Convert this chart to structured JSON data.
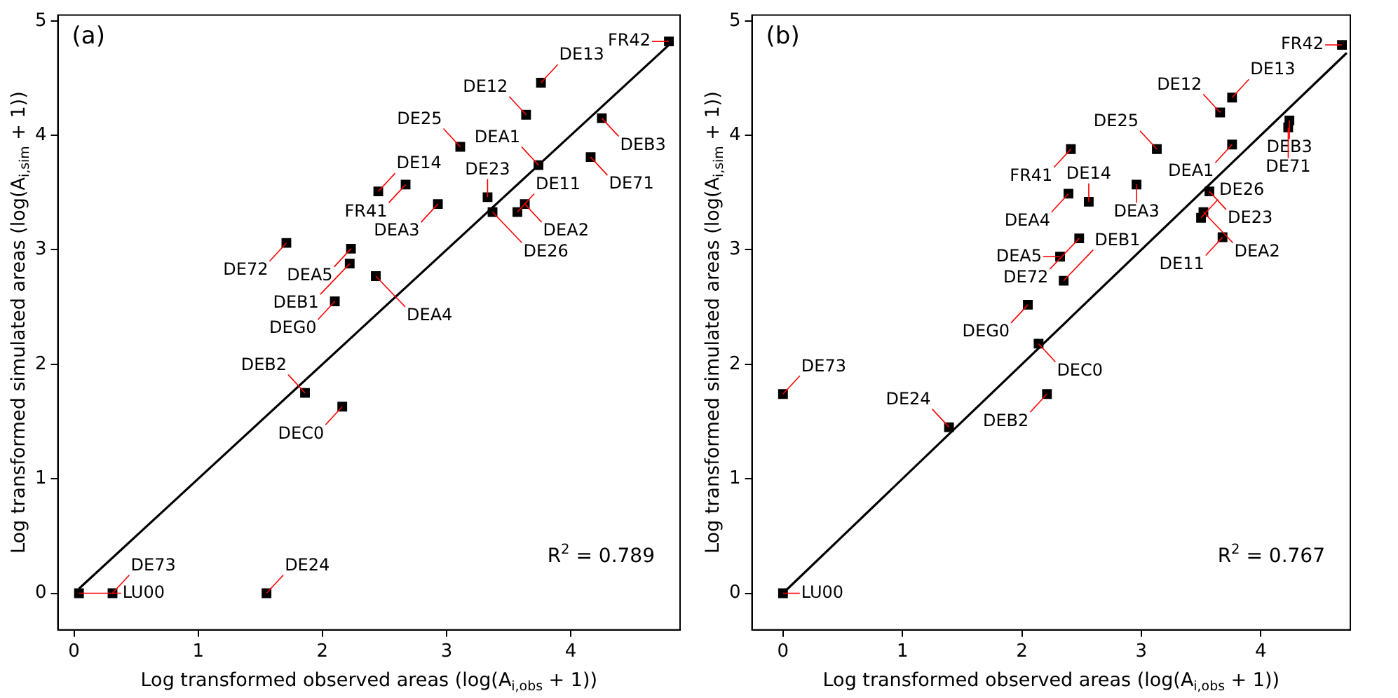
{
  "chart_data": [
    {
      "type": "scatter",
      "title": "(a)",
      "xlabel": "Log transformed observed areas (log(A$_{i,obs}$ + 1))",
      "ylabel": "Log transformed simulated areas (log(A$_{i,sim}$ + 1))",
      "xlim": [
        -0.13,
        4.88
      ],
      "ylim": [
        -0.32,
        5.05
      ],
      "xticks": [
        0,
        1,
        2,
        3,
        4
      ],
      "yticks": [
        0,
        1,
        2,
        3,
        4,
        5
      ],
      "grid": false,
      "legend": false,
      "marker": "square",
      "series": [
        {
          "type": "scatter",
          "color": "#000000",
          "x": [
            4.79,
            3.76,
            4.25,
            3.64,
            3.11,
            3.74,
            4.16,
            2.67,
            2.45,
            2.93,
            3.33,
            3.63,
            3.57,
            3.37,
            1.71,
            2.23,
            2.22,
            2.43,
            2.1,
            1.86,
            2.16,
            0.04,
            0.31,
            1.55
          ],
          "values": [
            4.82,
            4.46,
            4.15,
            4.18,
            3.9,
            3.74,
            3.81,
            3.57,
            3.51,
            3.4,
            3.46,
            3.4,
            3.33,
            3.33,
            3.06,
            3.01,
            2.88,
            2.77,
            2.55,
            1.75,
            1.63,
            0.0,
            0.0,
            0.0
          ]
        },
        {
          "type": "line",
          "color": "#000000",
          "marker": "none",
          "line_style": "solid",
          "x": [
            0.04,
            4.79
          ],
          "values": [
            0.04,
            4.79
          ]
        }
      ],
      "annotations": [
        "R$^{2}$ = 0.789",
        {
          "text": "FR42",
          "x": 4.79,
          "y": 4.82
        },
        {
          "text": "DE13",
          "x": 3.76,
          "y": 4.46
        },
        {
          "text": "DEB3",
          "x": 4.25,
          "y": 4.15
        },
        {
          "text": "DE12",
          "x": 3.64,
          "y": 4.18
        },
        {
          "text": "DE25",
          "x": 3.11,
          "y": 3.9
        },
        {
          "text": "DEA1",
          "x": 3.74,
          "y": 3.74
        },
        {
          "text": "DE71",
          "x": 4.16,
          "y": 3.81
        },
        {
          "text": "FR41",
          "x": 2.67,
          "y": 3.57
        },
        {
          "text": "DE14",
          "x": 2.45,
          "y": 3.51
        },
        {
          "text": "DEA3",
          "x": 2.93,
          "y": 3.4
        },
        {
          "text": "DE23",
          "x": 3.33,
          "y": 3.46
        },
        {
          "text": "DEA2",
          "x": 3.63,
          "y": 3.4
        },
        {
          "text": "DE11",
          "x": 3.57,
          "y": 3.33
        },
        {
          "text": "DE26",
          "x": 3.37,
          "y": 3.33
        },
        {
          "text": "DE72",
          "x": 1.71,
          "y": 3.06
        },
        {
          "text": "DEA5",
          "x": 2.23,
          "y": 3.01
        },
        {
          "text": "DEB1",
          "x": 2.22,
          "y": 2.88
        },
        {
          "text": "DEA4",
          "x": 2.43,
          "y": 2.77
        },
        {
          "text": "DEG0",
          "x": 2.1,
          "y": 2.55
        },
        {
          "text": "DEB2",
          "x": 1.86,
          "y": 1.75
        },
        {
          "text": "DEC0",
          "x": 2.16,
          "y": 1.63
        },
        {
          "text": "LU00",
          "x": 0.04,
          "y": 0.0
        },
        {
          "text": "DE73",
          "x": 0.31,
          "y": 0.0
        },
        {
          "text": "DE24",
          "x": 1.55,
          "y": 0.0
        }
      ]
    },
    {
      "type": "scatter",
      "title": "(b)",
      "xlabel": "Log transformed observed areas (log(A$_{i,obs}$ + 1))",
      "ylabel": "Log transformed simulated areas (log(A$_{i,sim}$ + 1))",
      "xlim": [
        -0.26,
        4.75
      ],
      "ylim": [
        -0.32,
        5.05
      ],
      "xticks": [
        0,
        1,
        2,
        3,
        4
      ],
      "yticks": [
        0,
        1,
        2,
        3,
        4,
        5
      ],
      "grid": false,
      "legend": false,
      "marker": "square",
      "series": [
        {
          "type": "scatter",
          "color": "#000000",
          "x": [
            4.68,
            3.76,
            3.66,
            4.24,
            4.23,
            2.41,
            3.13,
            3.76,
            2.96,
            3.57,
            2.39,
            2.56,
            3.52,
            3.5,
            2.48,
            3.68,
            2.32,
            2.35,
            2.05,
            2.14,
            0.0,
            2.21,
            1.39,
            0.0
          ],
          "values": [
            4.79,
            4.33,
            4.2,
            4.13,
            4.07,
            3.88,
            3.88,
            3.92,
            3.57,
            3.51,
            3.49,
            3.42,
            3.33,
            3.28,
            3.1,
            3.11,
            2.94,
            2.73,
            2.52,
            2.18,
            1.74,
            1.74,
            1.45,
            0.0
          ]
        },
        {
          "type": "line",
          "color": "#000000",
          "marker": "none",
          "line_style": "solid",
          "x": [
            0.0,
            4.72
          ],
          "values": [
            0.0,
            4.72
          ]
        }
      ],
      "annotations": [
        "R$^{2}$ = 0.767",
        {
          "text": "FR42",
          "x": 4.68,
          "y": 4.79
        },
        {
          "text": "DE13",
          "x": 3.76,
          "y": 4.33
        },
        {
          "text": "DE12",
          "x": 3.66,
          "y": 4.2
        },
        {
          "text": "DEB3",
          "x": 4.24,
          "y": 4.13
        },
        {
          "text": "DE71",
          "x": 4.23,
          "y": 4.07
        },
        {
          "text": "FR41",
          "x": 2.41,
          "y": 3.88
        },
        {
          "text": "DE25",
          "x": 3.13,
          "y": 3.88
        },
        {
          "text": "DEA1",
          "x": 3.76,
          "y": 3.92
        },
        {
          "text": "DEA3",
          "x": 2.96,
          "y": 3.57
        },
        {
          "text": "DE23",
          "x": 3.57,
          "y": 3.51
        },
        {
          "text": "DEA4",
          "x": 2.39,
          "y": 3.49
        },
        {
          "text": "DE14",
          "x": 2.56,
          "y": 3.42
        },
        {
          "text": "DEA2",
          "x": 3.52,
          "y": 3.33
        },
        {
          "text": "DE26",
          "x": 3.5,
          "y": 3.28
        },
        {
          "text": "DE72",
          "x": 2.48,
          "y": 3.1
        },
        {
          "text": "DE11",
          "x": 3.68,
          "y": 3.11
        },
        {
          "text": "DEA5",
          "x": 2.32,
          "y": 2.94
        },
        {
          "text": "DEB1",
          "x": 2.35,
          "y": 2.73
        },
        {
          "text": "DEG0",
          "x": 2.05,
          "y": 2.52
        },
        {
          "text": "DEC0",
          "x": 2.14,
          "y": 2.18
        },
        {
          "text": "DE73",
          "x": 0.0,
          "y": 1.74
        },
        {
          "text": "DEB2",
          "x": 2.21,
          "y": 1.74
        },
        {
          "text": "DE24",
          "x": 1.39,
          "y": 1.45
        },
        {
          "text": "LU00",
          "x": 0.0,
          "y": 0.0
        }
      ]
    }
  ]
}
